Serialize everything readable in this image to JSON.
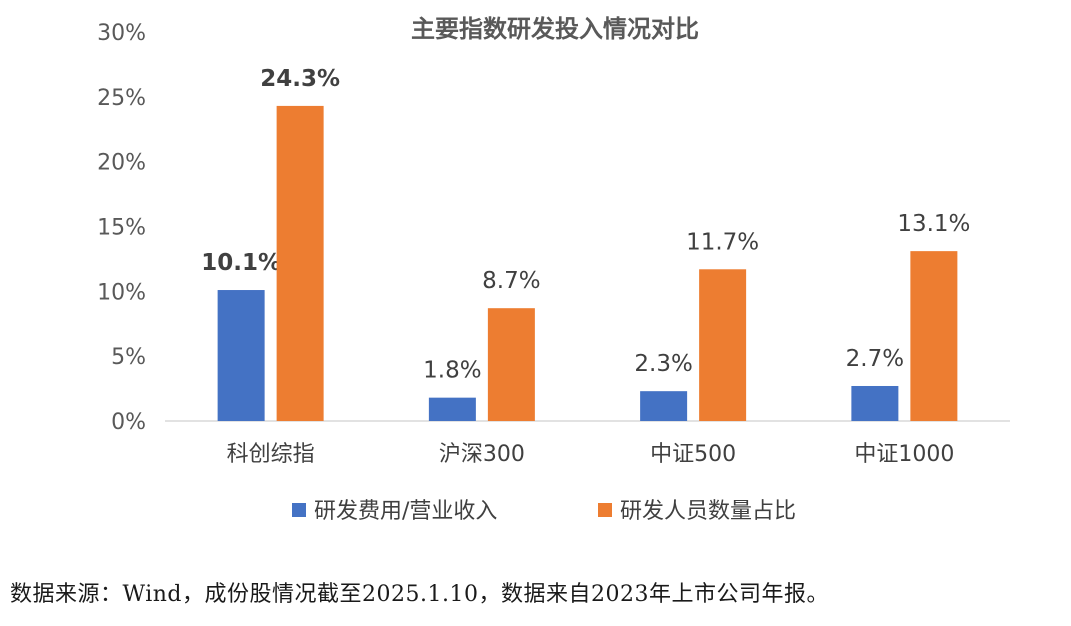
{
  "chart_data": {
    "type": "bar",
    "title": "主要指数研发投入情况对比",
    "categories": [
      "科创综指",
      "沪深300",
      "中证500",
      "中证1000"
    ],
    "series": [
      {
        "name": "研发费用/营业收入",
        "color": "#4472C4",
        "values": [
          10.1,
          1.8,
          2.3,
          2.7
        ],
        "labels": [
          "10.1%",
          "1.8%",
          "2.3%",
          "2.7%"
        ]
      },
      {
        "name": "研发人员数量占比",
        "color": "#ED7D31",
        "values": [
          24.3,
          8.7,
          11.7,
          13.1
        ],
        "labels": [
          "24.3%",
          "8.7%",
          "11.7%",
          "13.1%"
        ]
      }
    ],
    "bold_labels_category": "科创综指",
    "ylim": [
      0,
      30
    ],
    "yticks": [
      0,
      5,
      10,
      15,
      20,
      25,
      30
    ],
    "ytick_labels": [
      "0%",
      "5%",
      "10%",
      "15%",
      "20%",
      "25%",
      "30%"
    ],
    "legend_position": "bottom",
    "grid": false
  },
  "source_note": "数据来源：Wind，成份股情况截至2025.1.10，数据来自2023年上市公司年报。"
}
